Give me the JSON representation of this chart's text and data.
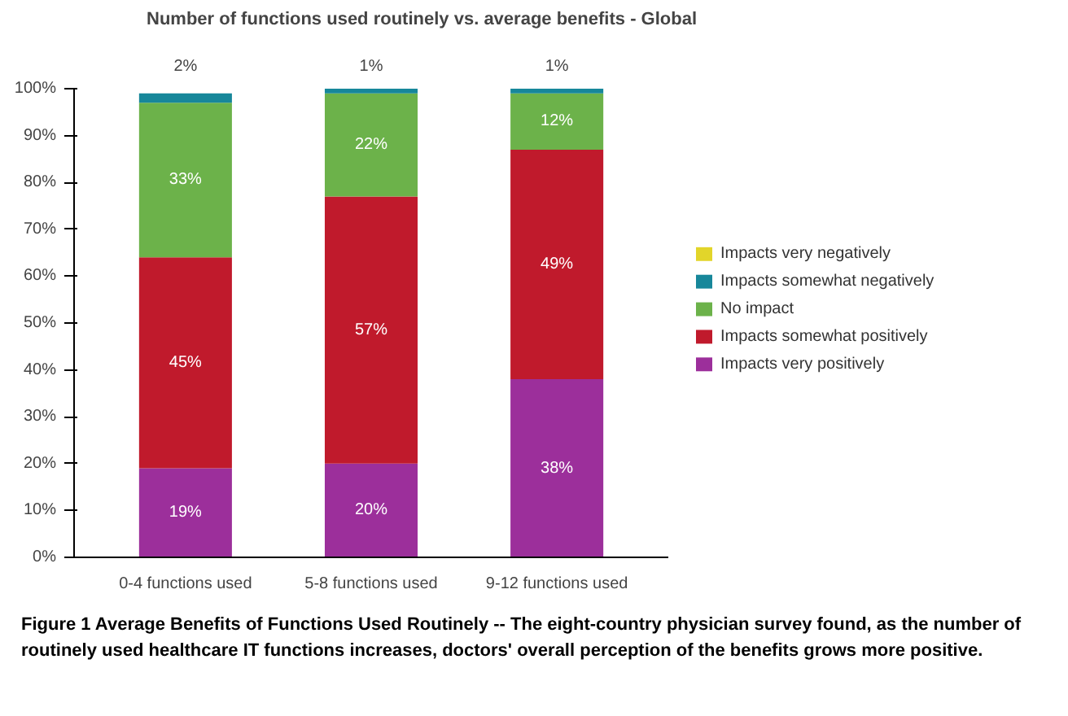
{
  "chart_data": {
    "type": "bar",
    "stacked": true,
    "title": "Number of functions used routinely vs. average benefits - Global",
    "categories": [
      "0-4 functions used",
      "5-8 functions used",
      "9-12 functions used"
    ],
    "series": [
      {
        "name": "Impacts very positively",
        "color": "#9c2f9b",
        "values": [
          19,
          20,
          38
        ],
        "value_labels": [
          "19%",
          "20%",
          "38%"
        ]
      },
      {
        "name": "Impacts somewhat positively",
        "color": "#c01a2c",
        "values": [
          45,
          57,
          49
        ],
        "value_labels": [
          "45%",
          "57%",
          "49%"
        ]
      },
      {
        "name": "No impact",
        "color": "#6cb24a",
        "values": [
          33,
          22,
          12
        ],
        "value_labels": [
          "33%",
          "22%",
          "12%"
        ]
      },
      {
        "name": "Impacts somewhat negatively",
        "color": "#17879a",
        "values": [
          2,
          1,
          1
        ],
        "value_labels": [
          "2%",
          "1%",
          "1%"
        ]
      },
      {
        "name": "Impacts very negatively",
        "color": "#e2d52a",
        "values": [
          0,
          0,
          0
        ],
        "value_labels": [
          null,
          null,
          null
        ]
      }
    ],
    "ylim": [
      0,
      100
    ],
    "yticks": [
      {
        "value": 0,
        "label": "0%"
      },
      {
        "value": 10,
        "label": "10%"
      },
      {
        "value": 20,
        "label": "20%"
      },
      {
        "value": 30,
        "label": "30%"
      },
      {
        "value": 40,
        "label": "40%"
      },
      {
        "value": 50,
        "label": "50%"
      },
      {
        "value": 60,
        "label": "60%"
      },
      {
        "value": 70,
        "label": "70%"
      },
      {
        "value": 80,
        "label": "80%"
      },
      {
        "value": 90,
        "label": "90%"
      },
      {
        "value": 100,
        "label": "100%"
      }
    ],
    "grid": false,
    "legend": "right",
    "annotations": [
      "Figure 1 Average Benefits of Functions Used Routinely -- The eight-country physician survey found, as the number of routinely used healthcare IT functions increases, doctors' overall perception of the benefits grows more positive."
    ]
  }
}
